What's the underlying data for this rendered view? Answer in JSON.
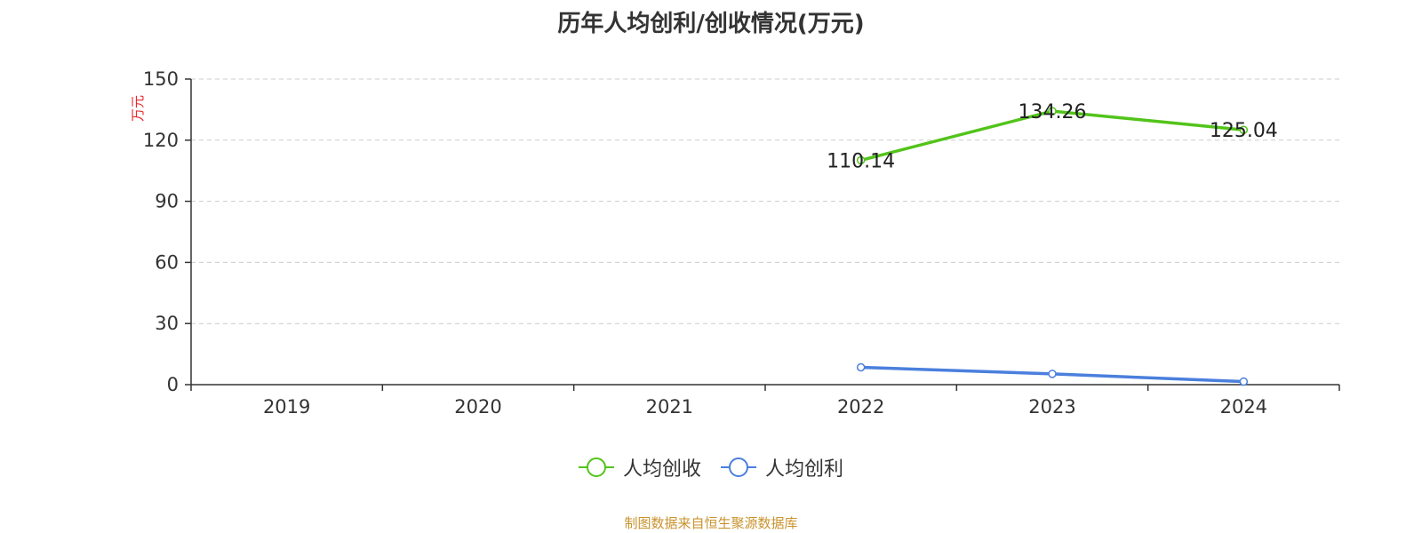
{
  "chart_data": {
    "type": "line",
    "title": "历年人均创利/创收情况(万元)",
    "ylabel": "万元",
    "xlabel": "",
    "categories": [
      "2019",
      "2020",
      "2021",
      "2022",
      "2023",
      "2024"
    ],
    "ylim": [
      0,
      150
    ],
    "yticks": [
      0,
      30,
      60,
      90,
      120,
      150
    ],
    "grid": true,
    "legend_position": "bottom",
    "series": [
      {
        "name": "人均创收",
        "color": "#52c41a",
        "values": [
          null,
          null,
          null,
          110.14,
          134.26,
          125.04
        ],
        "labels": [
          "",
          "",
          "",
          "110.14",
          "134.26",
          "125.04"
        ]
      },
      {
        "name": "人均创利",
        "color": "#4a7fdd",
        "values": [
          null,
          null,
          null,
          8.5,
          5.3,
          1.5
        ],
        "labels": [
          "",
          "",
          "",
          "",
          "",
          ""
        ]
      }
    ]
  },
  "source_note": "制图数据来自恒生聚源数据库"
}
